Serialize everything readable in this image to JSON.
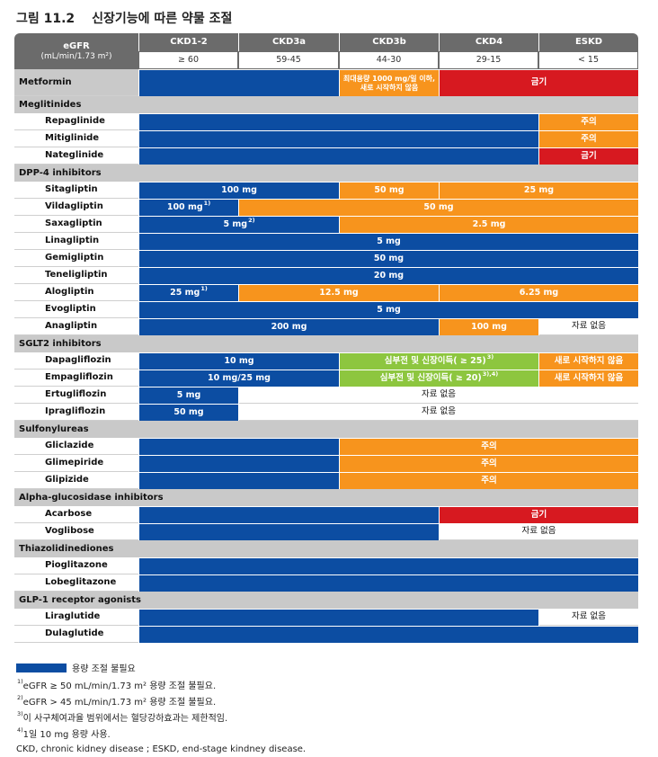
{
  "title": {
    "figure": "그림 11.2",
    "text": "신장기능에 따른 약물 조절"
  },
  "header": {
    "egfr_label": "eGFR",
    "egfr_unit": "(mL/min/1.73 m²)",
    "stages": [
      {
        "name": "CKD1-2",
        "range": "≥ 60"
      },
      {
        "name": "CKD3a",
        "range": "59-45"
      },
      {
        "name": "CKD3b",
        "range": "44-30"
      },
      {
        "name": "CKD4",
        "range": "29-15"
      },
      {
        "name": "ESKD",
        "range": "< 15"
      }
    ]
  },
  "colors": {
    "no_adjust": "#0c4da2",
    "caution": "#f7941d",
    "contraindicated": "#d71920",
    "conditional": "#8dc63f"
  },
  "rows": [
    {
      "kind": "drug",
      "name": "Metformin",
      "segs": [
        [
          "b",
          0,
          2,
          ""
        ],
        [
          "o",
          2,
          3,
          "최대용량 1000 mg/일 이하, 새로 시작하지 않음"
        ],
        [
          "r",
          3,
          5,
          "금기"
        ]
      ]
    },
    {
      "kind": "cat",
      "name": "Meglitinides"
    },
    {
      "kind": "drug",
      "name": "Repaglinide",
      "segs": [
        [
          "b",
          0,
          4,
          ""
        ],
        [
          "o",
          4,
          5,
          "주의"
        ]
      ]
    },
    {
      "kind": "drug",
      "name": "Mitiglinide",
      "segs": [
        [
          "b",
          0,
          4,
          ""
        ],
        [
          "o",
          4,
          5,
          "주의"
        ]
      ]
    },
    {
      "kind": "drug",
      "name": "Nateglinide",
      "segs": [
        [
          "b",
          0,
          4,
          ""
        ],
        [
          "r",
          4,
          5,
          "금기"
        ]
      ]
    },
    {
      "kind": "cat",
      "name": "DPP-4 inhibitors"
    },
    {
      "kind": "drug",
      "name": "Sitagliptin",
      "segs": [
        [
          "b",
          0,
          2,
          "100 mg"
        ],
        [
          "o",
          2,
          3,
          "50 mg"
        ],
        [
          "o",
          3,
          5,
          "25 mg"
        ]
      ]
    },
    {
      "kind": "drug",
      "name": "Vildagliptin",
      "segs": [
        [
          "b",
          0,
          1,
          "100 mg",
          "1)"
        ],
        [
          "o",
          1,
          5,
          "50 mg"
        ]
      ]
    },
    {
      "kind": "drug",
      "name": "Saxagliptin",
      "segs": [
        [
          "b",
          0,
          2,
          "5 mg",
          "2)"
        ],
        [
          "o",
          2,
          5,
          "2.5 mg"
        ]
      ]
    },
    {
      "kind": "drug",
      "name": "Linagliptin",
      "segs": [
        [
          "b",
          0,
          5,
          "5 mg"
        ]
      ]
    },
    {
      "kind": "drug",
      "name": "Gemigliptin",
      "segs": [
        [
          "b",
          0,
          5,
          "50 mg"
        ]
      ]
    },
    {
      "kind": "drug",
      "name": "Teneligliptin",
      "segs": [
        [
          "b",
          0,
          5,
          "20 mg"
        ]
      ]
    },
    {
      "kind": "drug",
      "name": "Alogliptin",
      "segs": [
        [
          "b",
          0,
          1,
          "25 mg",
          "1)"
        ],
        [
          "o",
          1,
          3,
          "12.5 mg"
        ],
        [
          "o",
          3,
          5,
          "6.25 mg"
        ]
      ]
    },
    {
      "kind": "drug",
      "name": "Evogliptin",
      "segs": [
        [
          "b",
          0,
          5,
          "5 mg"
        ]
      ]
    },
    {
      "kind": "drug",
      "name": "Anagliptin",
      "segs": [
        [
          "b",
          0,
          3,
          "200 mg"
        ],
        [
          "o",
          3,
          4,
          "100 mg"
        ],
        [
          "w",
          4,
          5,
          "자료 없음"
        ]
      ]
    },
    {
      "kind": "cat",
      "name": "SGLT2 inhibitors"
    },
    {
      "kind": "drug",
      "name": "Dapagliflozin",
      "segs": [
        [
          "b",
          0,
          2,
          "10 mg"
        ],
        [
          "g",
          2,
          4,
          "심부전 및 신장이득( ≥ 25)",
          "3)"
        ],
        [
          "o",
          4,
          5,
          "새로 시작하지 않음"
        ]
      ]
    },
    {
      "kind": "drug",
      "name": "Empagliflozin",
      "segs": [
        [
          "b",
          0,
          2,
          "10 mg/25 mg"
        ],
        [
          "g",
          2,
          4,
          "심부전 및 신장이득( ≥ 20)",
          "3),4)"
        ],
        [
          "o",
          4,
          5,
          "새로 시작하지 않음"
        ]
      ]
    },
    {
      "kind": "drug",
      "name": "Ertugliflozin",
      "segs": [
        [
          "b",
          0,
          1,
          "5 mg"
        ],
        [
          "w",
          1,
          5,
          "자료 없음"
        ]
      ]
    },
    {
      "kind": "drug",
      "name": "Ipragliflozin",
      "segs": [
        [
          "b",
          0,
          1,
          "50 mg"
        ],
        [
          "w",
          1,
          5,
          "자료 없음"
        ]
      ]
    },
    {
      "kind": "cat",
      "name": "Sulfonylureas"
    },
    {
      "kind": "drug",
      "name": "Gliclazide",
      "segs": [
        [
          "b",
          0,
          2,
          ""
        ],
        [
          "o",
          2,
          5,
          "주의"
        ]
      ]
    },
    {
      "kind": "drug",
      "name": "Glimepiride",
      "segs": [
        [
          "b",
          0,
          2,
          ""
        ],
        [
          "o",
          2,
          5,
          "주의"
        ]
      ]
    },
    {
      "kind": "drug",
      "name": "Glipizide",
      "segs": [
        [
          "b",
          0,
          2,
          ""
        ],
        [
          "o",
          2,
          5,
          "주의"
        ]
      ]
    },
    {
      "kind": "cat",
      "name": "Alpha-glucosidase inhibitors"
    },
    {
      "kind": "drug",
      "name": "Acarbose",
      "segs": [
        [
          "b",
          0,
          3,
          ""
        ],
        [
          "r",
          3,
          5,
          "금기"
        ]
      ]
    },
    {
      "kind": "drug",
      "name": "Voglibose",
      "segs": [
        [
          "b",
          0,
          3,
          ""
        ],
        [
          "w",
          3,
          5,
          "자료 없음"
        ]
      ]
    },
    {
      "kind": "cat",
      "name": "Thiazolidinediones"
    },
    {
      "kind": "drug",
      "name": "Pioglitazone",
      "segs": [
        [
          "b",
          0,
          5,
          ""
        ]
      ]
    },
    {
      "kind": "drug",
      "name": "Lobeglitazone",
      "segs": [
        [
          "b",
          0,
          5,
          ""
        ]
      ]
    },
    {
      "kind": "cat",
      "name": "GLP-1 receptor agonists"
    },
    {
      "kind": "drug",
      "name": "Liraglutide",
      "segs": [
        [
          "b",
          0,
          4,
          ""
        ],
        [
          "w",
          4,
          5,
          "자료 없음"
        ]
      ]
    },
    {
      "kind": "drug",
      "name": "Dulaglutide",
      "segs": [
        [
          "b",
          0,
          5,
          ""
        ]
      ]
    }
  ],
  "legend": {
    "box_label": "용량 조절 불필요",
    "footnotes": [
      {
        "mark": "1)",
        "text": "eGFR ≥ 50 mL/min/1.73 m² 용량 조절 불필요."
      },
      {
        "mark": "2)",
        "text": "eGFR > 45 mL/min/1.73 m² 용량 조절 불필요."
      },
      {
        "mark": "3)",
        "text": "이 사구체여과율 범위에서는 혈당강하효과는 제한적임."
      },
      {
        "mark": "4)",
        "text": "1일 10 mg 용량 사용."
      }
    ],
    "abbrev": "CKD, chronic kidney disease ; ESKD, end-stage kindney disease."
  }
}
